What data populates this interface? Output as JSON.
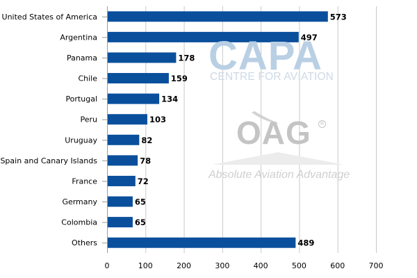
{
  "chart_data": {
    "type": "bar",
    "orientation": "horizontal",
    "categories": [
      "United States of America",
      "Argentina",
      "Panama",
      "Chile",
      "Portugal",
      "Peru",
      "Uruguay",
      "Spain and Canary Islands",
      "France",
      "Germany",
      "Colombia",
      "Others"
    ],
    "values": [
      573,
      497,
      178,
      159,
      134,
      103,
      82,
      78,
      72,
      65,
      65,
      489
    ],
    "xlim": [
      0,
      700
    ],
    "xticks": [
      0,
      100,
      200,
      300,
      400,
      500,
      600,
      700
    ],
    "grid": "vertical",
    "bar_color": "#0a4f9c",
    "data_labels": true
  },
  "watermark": {
    "capa": "CAPA",
    "capa_sub": "CENTRE FOR AVIATION",
    "oag": "OAG",
    "oag_sub": "Absolute Aviation Advantage",
    "capa_color": "#b9cfe4",
    "oag_color": "#c4c4c4"
  }
}
